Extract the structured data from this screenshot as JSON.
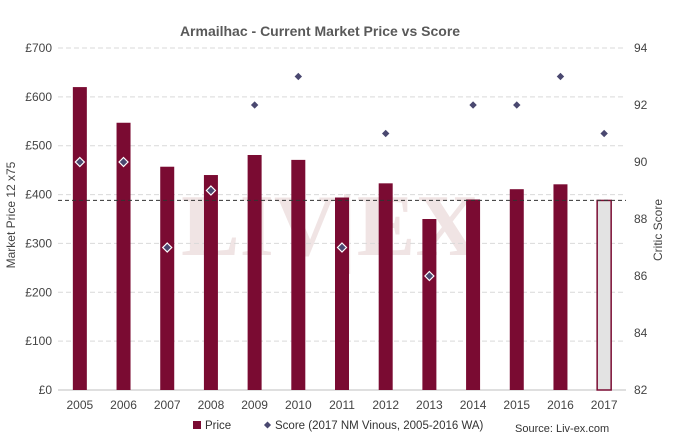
{
  "chart_data": {
    "type": "bar",
    "title": "Armailhac - Current Market Price vs Score",
    "categories": [
      "2005",
      "2006",
      "2007",
      "2008",
      "2009",
      "2010",
      "2011",
      "2012",
      "2013",
      "2014",
      "2015",
      "2016",
      "2017"
    ],
    "series": [
      {
        "name": "Price",
        "type": "bar",
        "axis": "left",
        "values": [
          620,
          547,
          457,
          440,
          481,
          471,
          394,
          423,
          350,
          390,
          411,
          421,
          388
        ]
      },
      {
        "name": "Score (2017 NM Vinous, 2005-2016 WA)",
        "type": "scatter",
        "axis": "right",
        "values": [
          90,
          90,
          87,
          89,
          92,
          93,
          87,
          91,
          86,
          92,
          92,
          93,
          91
        ]
      }
    ],
    "ylabel": "Market Price 12 x75",
    "y2label": "Critic Score",
    "ylim": [
      0,
      700
    ],
    "y2lim": [
      82,
      94
    ],
    "yticks": [
      "£0",
      "£100",
      "£200",
      "£300",
      "£400",
      "£500",
      "£600",
      "£700"
    ],
    "y2ticks": [
      "82",
      "84",
      "86",
      "88",
      "90",
      "92",
      "94"
    ],
    "reference_line": 388,
    "highlight_category": "2017",
    "grid": true,
    "legend_position": "bottom",
    "colors": {
      "bar": "#7a0b32",
      "highlight_fill": "#e3e3e3",
      "marker": "#4a4870",
      "grid": "#d9d9d9"
    }
  },
  "watermark": "LIV|EX",
  "source": "Source: Liv-ex.com"
}
